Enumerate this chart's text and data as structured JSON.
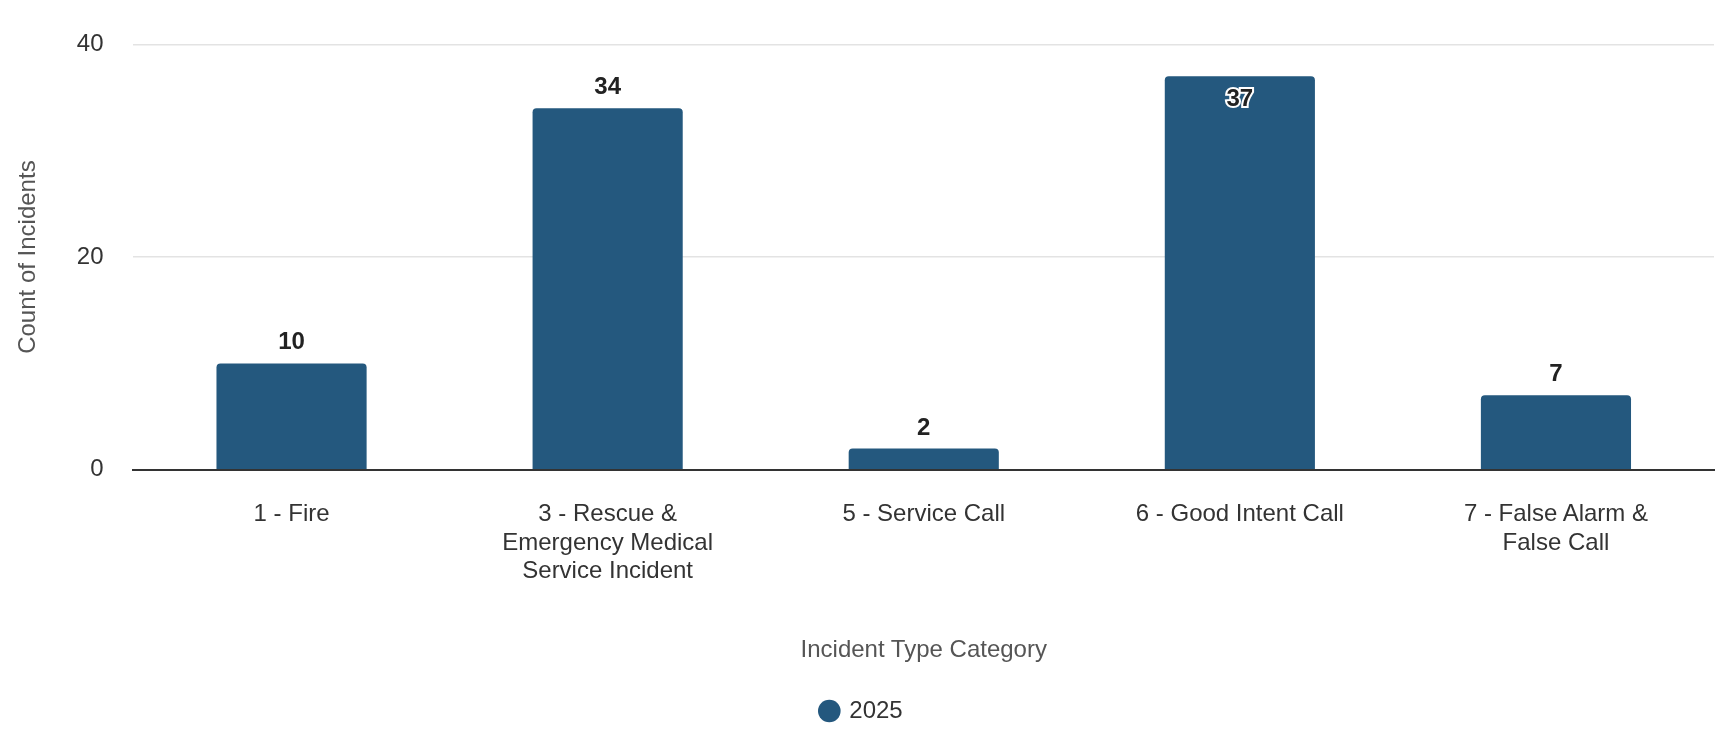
{
  "chart_data": {
    "type": "bar",
    "categories": [
      "1 - Fire",
      "3 - Rescue & Emergency Medical Service Incident",
      "5 - Service Call",
      "6 - Good Intent Call",
      "7 - False Alarm & False Call"
    ],
    "series": [
      {
        "name": "2025",
        "color": "#24587e",
        "values": [
          10,
          34,
          2,
          37,
          7
        ]
      }
    ],
    "xlabel": "Incident Type Category",
    "ylabel": "Count of Incidents",
    "ylim": [
      0,
      40
    ],
    "yticks": [
      0,
      20,
      40
    ],
    "grid": "y",
    "legend": "bottom",
    "data_labels": true
  }
}
